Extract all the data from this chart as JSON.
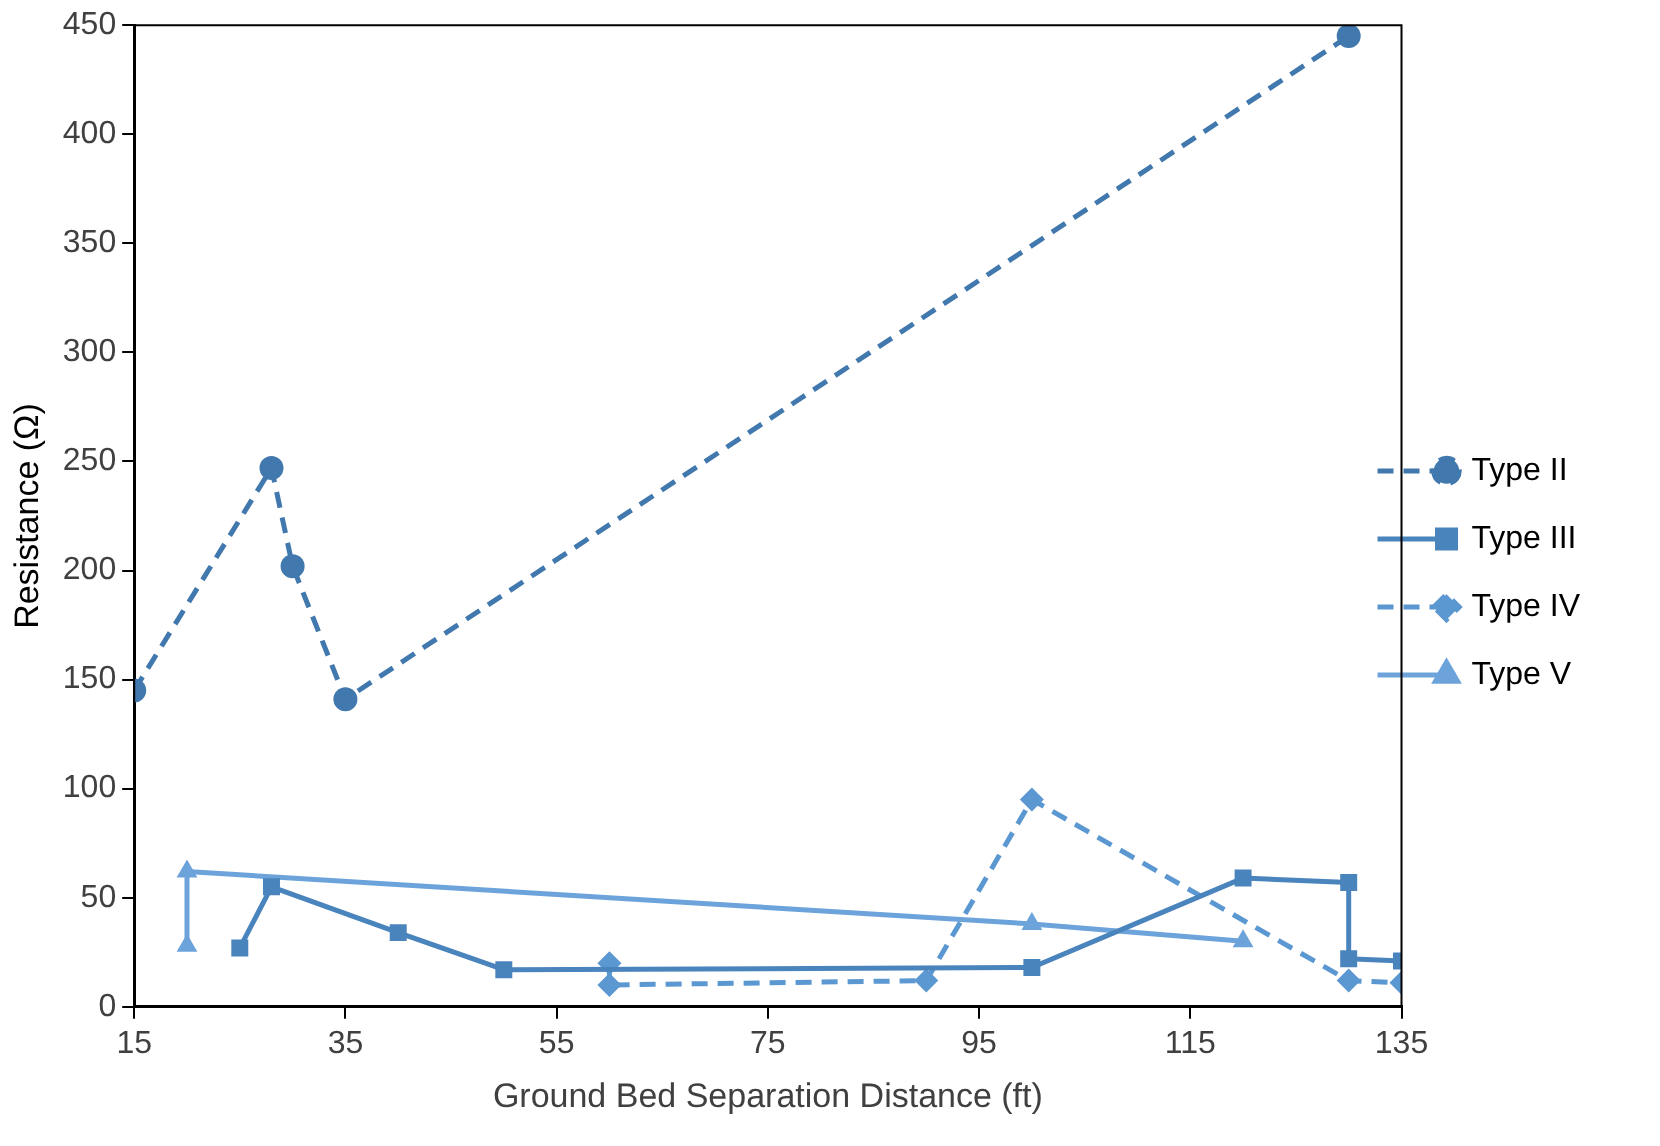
{
  "chart_data": {
    "type": "line",
    "xlabel": "Ground Bed Separation Distance (ft)",
    "ylabel": "Resistance (Ω)",
    "xlim": [
      15,
      135
    ],
    "xticks": [
      15,
      35,
      55,
      75,
      95,
      115,
      135
    ],
    "ylim": [
      0,
      450
    ],
    "yticks": [
      0,
      50,
      100,
      150,
      200,
      250,
      300,
      350,
      400,
      450
    ],
    "grid": false,
    "legend": "right",
    "series": [
      {
        "name": "Type II",
        "color": "#4178ad",
        "marker": "circle",
        "line_style": "dashed",
        "x": [
          15,
          28,
          30,
          35,
          130
        ],
        "values": [
          145,
          247,
          202,
          141,
          445
        ]
      },
      {
        "name": "Type III",
        "color": "#4a84bd",
        "marker": "square",
        "line_style": "solid",
        "x": [
          25,
          28,
          40,
          50,
          100,
          120,
          130,
          130,
          135
        ],
        "values": [
          27,
          55,
          34,
          17,
          18,
          59,
          57,
          22,
          21
        ]
      },
      {
        "name": "Type IV",
        "color": "#5b97d0",
        "marker": "diamond",
        "line_style": "dashed",
        "x": [
          60,
          60,
          90,
          100,
          130,
          135
        ],
        "values": [
          20,
          10,
          12,
          95,
          12,
          11
        ]
      },
      {
        "name": "Type V",
        "color": "#6ca3da",
        "marker": "triangle",
        "line_style": "solid",
        "x": [
          20,
          20,
          100,
          120
        ],
        "values": [
          28,
          62,
          38,
          30
        ]
      }
    ]
  }
}
